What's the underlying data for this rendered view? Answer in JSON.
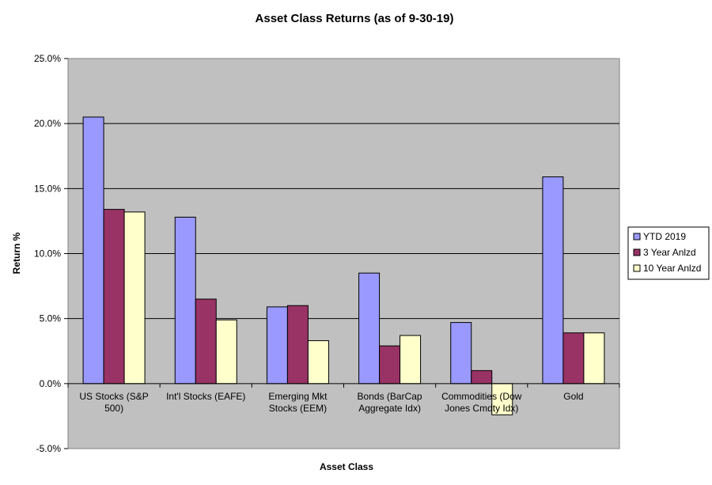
{
  "chart_data": {
    "type": "bar",
    "title": "Asset Class Returns (as of 9-30-19)",
    "xlabel": "Asset  Class",
    "ylabel": "Return  %",
    "ylim": [
      -5,
      25
    ],
    "y_ticks": [
      -5,
      0,
      5,
      10,
      15,
      20,
      25
    ],
    "y_tick_labels": [
      "-5.0%",
      "0.0%",
      "5.0%",
      "10.0%",
      "15.0%",
      "20.0%",
      "25.0%"
    ],
    "grid": true,
    "legend_position": "right",
    "categories": [
      [
        "US Stocks (S&P",
        "500)"
      ],
      [
        "Int'l Stocks (EAFE)"
      ],
      [
        "Emerging Mkt",
        "Stocks (EEM)"
      ],
      [
        "Bonds (BarCap",
        "Aggregate Idx)"
      ],
      [
        "Commodities (Dow",
        "Jones Cmdty Idx)"
      ],
      [
        "Gold"
      ]
    ],
    "series": [
      {
        "name": "YTD 2019",
        "color": "#9999ff",
        "values": [
          20.5,
          12.8,
          5.9,
          8.5,
          4.7,
          15.9
        ]
      },
      {
        "name": "3 Year Anlzd",
        "color": "#993366",
        "values": [
          13.4,
          6.5,
          6.0,
          2.9,
          1.0,
          3.9
        ]
      },
      {
        "name": "10 Year Anlzd",
        "color": "#ffffcc",
        "values": [
          13.2,
          4.9,
          3.3,
          3.7,
          -2.4,
          3.9
        ]
      }
    ],
    "plot_background": "#c0c0c0"
  }
}
